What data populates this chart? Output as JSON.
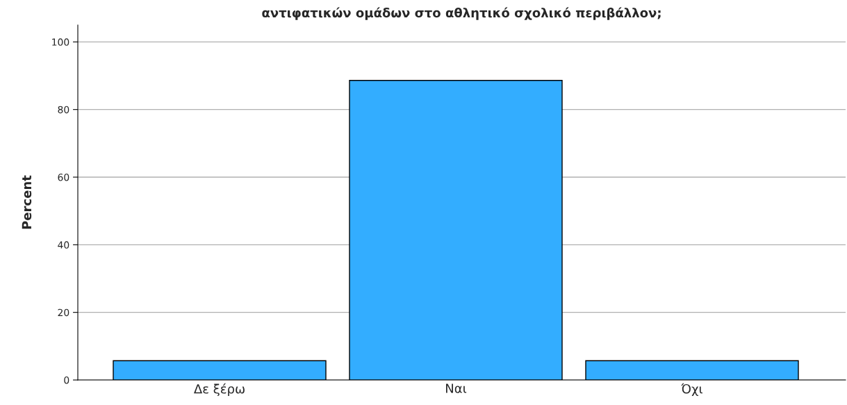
{
  "chart_data": {
    "type": "bar",
    "title": "αντιφατικών ομάδων στο αθλητικό σχολικό περιβάλλον;",
    "ylabel": "Percent",
    "categories": [
      "Δε ξέρω",
      "Ναι",
      "Όχι"
    ],
    "values": [
      5.7,
      88.6,
      5.7
    ],
    "color": "#33adff",
    "ylim": [
      0,
      105
    ],
    "yticks": [
      0,
      20,
      40,
      60,
      80,
      100
    ],
    "grid": "y"
  }
}
